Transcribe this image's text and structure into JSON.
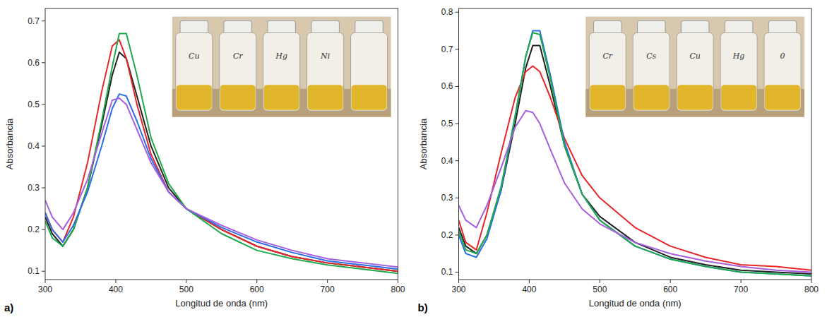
{
  "chart_data": [
    {
      "type": "line",
      "title": "a)",
      "x_label": "Longitud de onda (nm)",
      "y_label": "Absorbancia",
      "annotations": [
        "Cu",
        "Cr",
        "Hg",
        "Ni"
      ],
      "x": [
        300,
        310,
        325,
        340,
        360,
        380,
        395,
        405,
        415,
        430,
        450,
        475,
        500,
        550,
        600,
        650,
        700,
        750,
        800
      ],
      "xlim": [
        300,
        800
      ],
      "xticks": [
        300,
        400,
        500,
        600,
        700,
        800
      ],
      "ylim": [
        0.08,
        0.73
      ],
      "yticks": [
        0.1,
        0.2,
        0.3,
        0.4,
        0.5,
        0.6,
        0.7
      ],
      "grid": false,
      "series": [
        {
          "color": "#222222",
          "values": [
            0.23,
            0.19,
            0.16,
            0.2,
            0.3,
            0.45,
            0.57,
            0.625,
            0.61,
            0.52,
            0.4,
            0.3,
            0.25,
            0.2,
            0.16,
            0.135,
            0.12,
            0.11,
            0.1
          ]
        },
        {
          "color": "#e8262a",
          "values": [
            0.24,
            0.2,
            0.17,
            0.23,
            0.36,
            0.53,
            0.64,
            0.655,
            0.61,
            0.5,
            0.38,
            0.29,
            0.25,
            0.2,
            0.16,
            0.135,
            0.12,
            0.11,
            0.1
          ]
        },
        {
          "color": "#1faa4a",
          "values": [
            0.22,
            0.18,
            0.16,
            0.2,
            0.3,
            0.46,
            0.59,
            0.67,
            0.67,
            0.57,
            0.42,
            0.31,
            0.25,
            0.19,
            0.15,
            0.13,
            0.115,
            0.105,
            0.095
          ]
        },
        {
          "color": "#2a6ee8",
          "values": [
            0.24,
            0.2,
            0.17,
            0.21,
            0.29,
            0.4,
            0.49,
            0.525,
            0.52,
            0.46,
            0.37,
            0.29,
            0.25,
            0.205,
            0.17,
            0.145,
            0.125,
            0.115,
            0.105
          ]
        },
        {
          "color": "#a55ee0",
          "values": [
            0.27,
            0.23,
            0.2,
            0.24,
            0.32,
            0.43,
            0.51,
            0.515,
            0.5,
            0.44,
            0.36,
            0.29,
            0.25,
            0.21,
            0.175,
            0.15,
            0.13,
            0.12,
            0.11
          ]
        }
      ]
    },
    {
      "type": "line",
      "title": "b)",
      "x_label": "Longitud de onda (nm)",
      "y_label": "Absorbancia",
      "annotations": [
        "Cr",
        "Cs",
        "Cu",
        "Hg",
        "0"
      ],
      "x": [
        300,
        310,
        325,
        340,
        360,
        380,
        395,
        405,
        415,
        430,
        450,
        475,
        500,
        550,
        600,
        650,
        700,
        750,
        800
      ],
      "xlim": [
        300,
        800
      ],
      "xticks": [
        300,
        400,
        500,
        600,
        700,
        800
      ],
      "ylim": [
        0.08,
        0.81
      ],
      "yticks": [
        0.1,
        0.2,
        0.3,
        0.4,
        0.5,
        0.6,
        0.7,
        0.8
      ],
      "grid": false,
      "series": [
        {
          "color": "#222222",
          "values": [
            0.22,
            0.17,
            0.15,
            0.2,
            0.32,
            0.5,
            0.65,
            0.71,
            0.71,
            0.6,
            0.44,
            0.31,
            0.25,
            0.18,
            0.14,
            0.12,
            0.105,
            0.1,
            0.095
          ]
        },
        {
          "color": "#e8262a",
          "values": [
            0.24,
            0.18,
            0.16,
            0.26,
            0.42,
            0.57,
            0.64,
            0.655,
            0.64,
            0.57,
            0.46,
            0.36,
            0.3,
            0.22,
            0.17,
            0.14,
            0.12,
            0.115,
            0.105
          ]
        },
        {
          "color": "#2a6ee8",
          "values": [
            0.2,
            0.15,
            0.14,
            0.19,
            0.32,
            0.52,
            0.68,
            0.75,
            0.75,
            0.63,
            0.45,
            0.31,
            0.24,
            0.17,
            0.135,
            0.115,
            0.1,
            0.095,
            0.09
          ]
        },
        {
          "color": "#1faa4a",
          "values": [
            0.21,
            0.16,
            0.15,
            0.2,
            0.33,
            0.52,
            0.68,
            0.745,
            0.74,
            0.62,
            0.44,
            0.31,
            0.24,
            0.17,
            0.135,
            0.115,
            0.1,
            0.095,
            0.09
          ]
        },
        {
          "color": "#a55ee0",
          "values": [
            0.28,
            0.24,
            0.22,
            0.28,
            0.38,
            0.49,
            0.535,
            0.53,
            0.5,
            0.43,
            0.34,
            0.27,
            0.23,
            0.18,
            0.15,
            0.13,
            0.115,
            0.105,
            0.1
          ]
        }
      ]
    }
  ]
}
